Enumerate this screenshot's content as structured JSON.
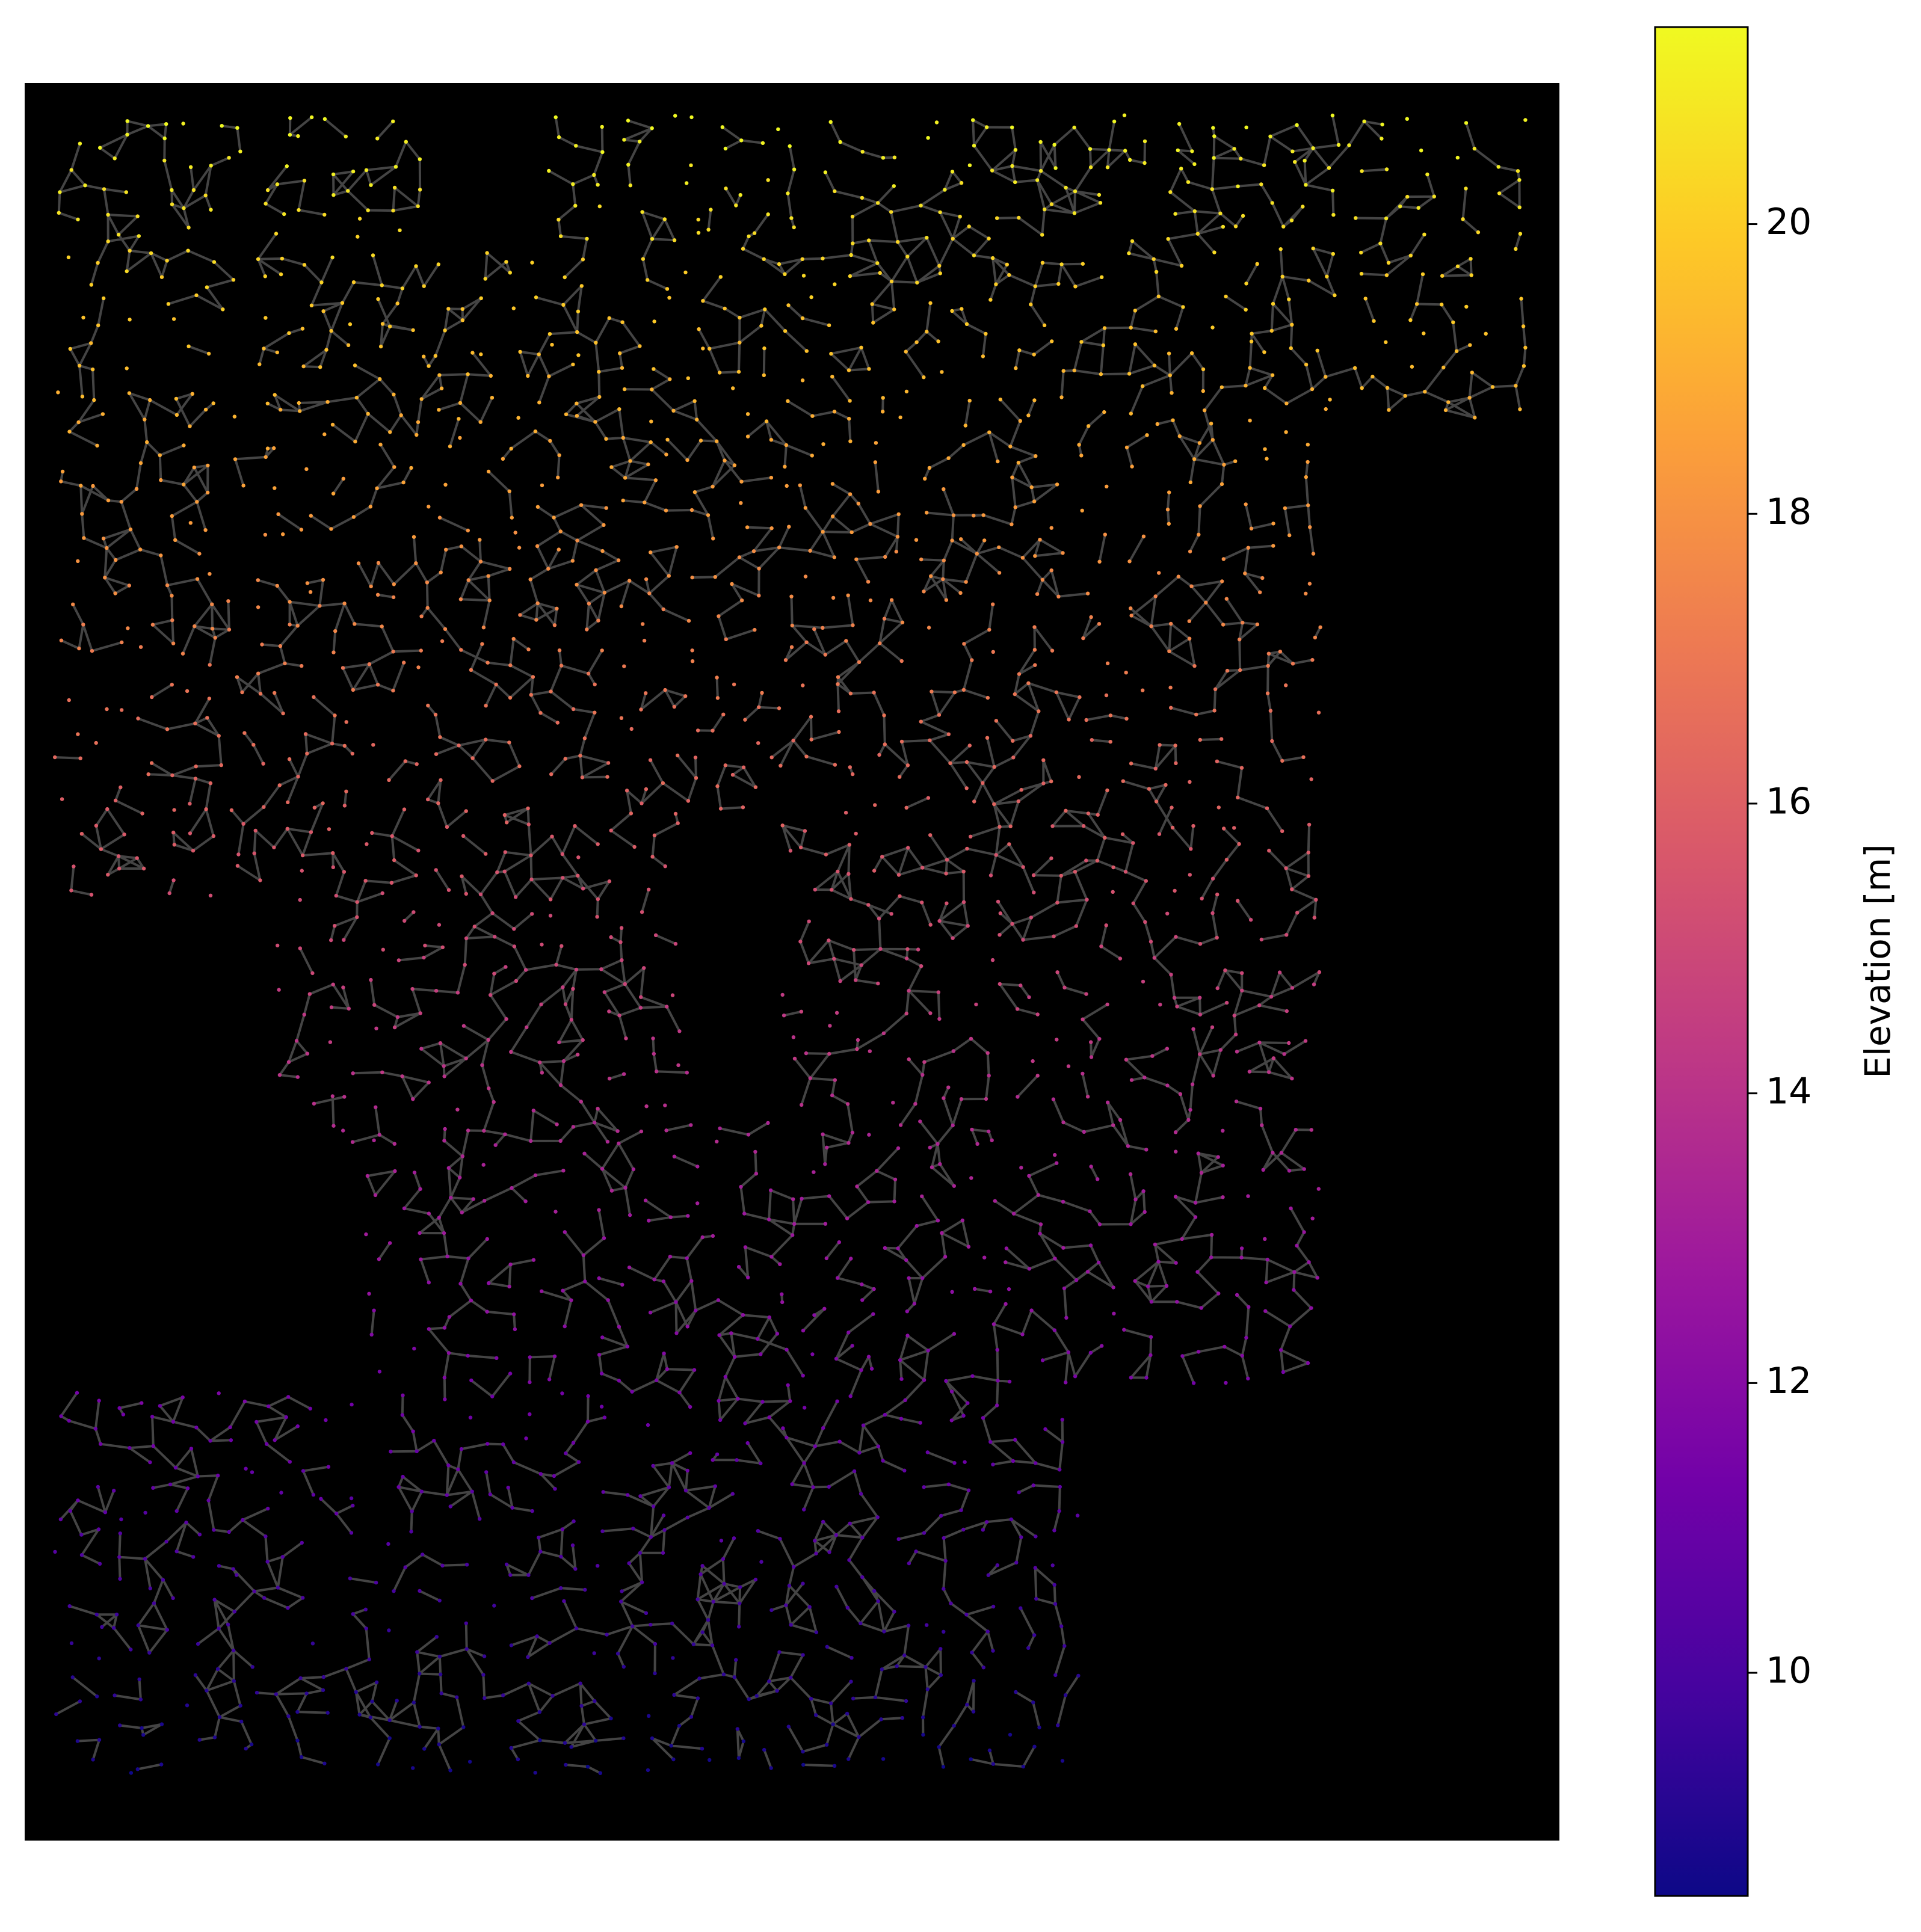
{
  "chart_data": {
    "type": "map",
    "colorbar": {
      "label": "Elevation [m]",
      "clim": [
        8.46,
        21.36
      ],
      "ticks": [
        10,
        12,
        14,
        16,
        18,
        20
      ],
      "colormap": "plasma"
    }
  }
}
